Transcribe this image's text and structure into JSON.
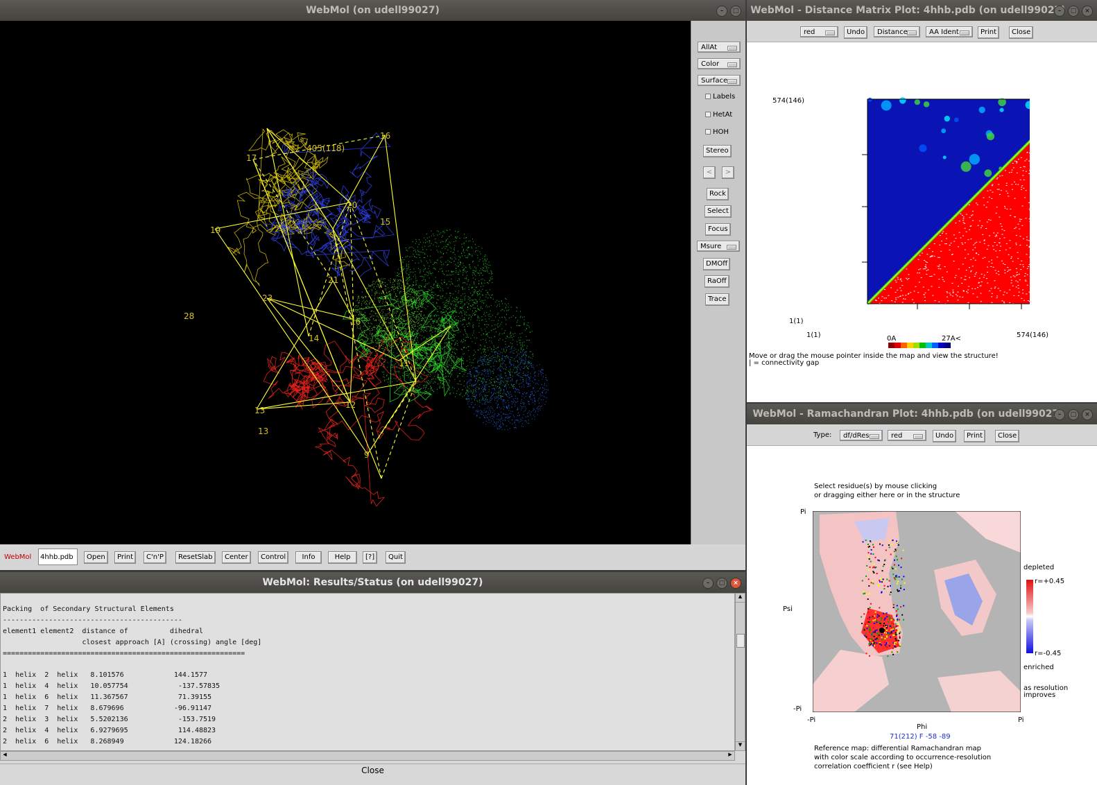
{
  "main": {
    "title": "WebMol (on udell99027)",
    "structure_labels": [
      "16",
      "17",
      "405(118)",
      "20",
      "19",
      "15",
      "21",
      "23",
      "16",
      "14",
      "11",
      "13",
      "12",
      "13",
      "9",
      "28"
    ],
    "side_buttons": {
      "allat": "AllAt",
      "color": "Color",
      "surface": "Surface",
      "labels": "Labels",
      "hetat": "HetAt",
      "hoh": "HOH",
      "stereo": "Stereo",
      "prev": "<",
      "next": ">",
      "rock": "Rock",
      "select": "Select",
      "focus": "Focus",
      "msure": "Msure",
      "dmoff": "DMOff",
      "raoff": "RaOff",
      "trace": "Trace"
    },
    "bottom": {
      "brand": "WebMol",
      "file": "4hhb.pdb",
      "open": "Open",
      "print": "Print",
      "cnp": "C'n'P",
      "resetslab": "ResetSlab",
      "center": "Center",
      "control": "Control",
      "info": "Info",
      "help": "Help",
      "q": "[?]",
      "quit": "Quit"
    },
    "colors": {
      "background": "#000000",
      "chain_a": "#c8b400",
      "chain_b": "#2a3bd6",
      "chain_c": "#e0201a",
      "chain_d": "#22c820",
      "sse": "#ffff33"
    }
  },
  "results": {
    "title": "WebMol: Results/Status (on udell99027)",
    "lines": [
      "Packing  of Secondary Structural Elements",
      "-------------------------------------------",
      "element1 element2  distance of          dihedral",
      "                   closest approach [A] (crossing) angle [deg]",
      "==========================================================",
      "",
      "1  helix  2  helix   8.101576            144.1577",
      "1  helix  4  helix   10.057754            -137.57835",
      "1  helix  6  helix   11.367567            71.39155",
      "1  helix  7  helix   8.679696            -96.91147",
      "2  helix  3  helix   5.5202136            -153.7519",
      "2  helix  4  helix   6.9279695            114.48823",
      "2  helix  6  helix   8.268949            124.18266"
    ],
    "close": "Close"
  },
  "dm": {
    "title": "WebMol - Distance Matrix Plot: 4hhb.pdb (on udell99027)",
    "toolbar": {
      "color": "red",
      "undo": "Undo",
      "distance": "Distance",
      "aaident": "AA Ident",
      "print": "Print",
      "close": "Close"
    },
    "y_top": "574(146)",
    "y_bottom": "1(1)",
    "x_left": "1(1)",
    "x_right": "574(146)",
    "scale_min": "0A",
    "scale_max": "27A<",
    "scale_colors": [
      "#8b0000",
      "#e00000",
      "#ff6000",
      "#ffd000",
      "#a0e000",
      "#00c000",
      "#00c8c8",
      "#0060ff",
      "#0000c0",
      "#000080"
    ],
    "help1": "Move or drag the mouse pointer inside the map and view the structure!",
    "help2": "| = connectivity gap"
  },
  "rama": {
    "title": "WebMol - Ramachandran Plot: 4hhb.pdb (on udell99027)",
    "toolbar": {
      "type_label": "Type:",
      "type": "df/dRes",
      "color": "red",
      "undo": "Undo",
      "print": "Print",
      "close": "Close"
    },
    "instr1": "Select residue(s) by mouse clicking",
    "instr2": "or dragging either here or in the structure",
    "pi_top": "Pi",
    "psi": "Psi",
    "neg_pi_left": "-Pi",
    "neg_pi_bottom": "-Pi",
    "phi": "Phi",
    "pi_right": "Pi",
    "depleted": "depleted",
    "r_pos": "r=+0.45",
    "r_neg": "r=-0.45",
    "enriched": "enriched",
    "as_res": "as resolution",
    "improves": "improves",
    "status": "71(212) F -58 -89",
    "ref1": "Reference map: differential Ramachandran map",
    "ref2": "with color scale according to occurrence-resolution",
    "ref3": "correlation coefficient r (see Help)"
  }
}
